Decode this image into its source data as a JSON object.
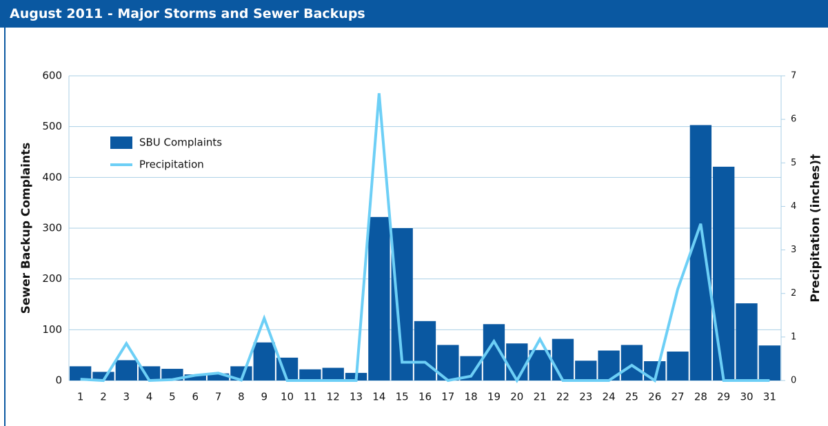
{
  "header": {
    "title": "August 2011 - Major Storms and Sewer Backups"
  },
  "chart_data": {
    "type": "bar-line",
    "categories": [
      "1",
      "2",
      "3",
      "4",
      "5",
      "6",
      "7",
      "8",
      "9",
      "10",
      "11",
      "12",
      "13",
      "14",
      "15",
      "16",
      "17",
      "18",
      "19",
      "20",
      "21",
      "22",
      "23",
      "24",
      "25",
      "26",
      "27",
      "28",
      "29",
      "30",
      "31"
    ],
    "series": [
      {
        "name": "SBU Complaints",
        "type": "bar",
        "color": "#0a58a1",
        "values": [
          28,
          17,
          40,
          28,
          23,
          12,
          14,
          28,
          75,
          45,
          22,
          25,
          15,
          322,
          300,
          117,
          70,
          48,
          111,
          73,
          60,
          82,
          39,
          59,
          70,
          38,
          57,
          503,
          421,
          152,
          69
        ]
      },
      {
        "name": "Precipitation",
        "type": "line",
        "axis": "y2",
        "color": "#6dcff6",
        "values": [
          0.03,
          0,
          0.85,
          0,
          0.02,
          0.12,
          0.17,
          0.01,
          1.43,
          0,
          0,
          0,
          0,
          6.6,
          0.42,
          0.42,
          0,
          0.1,
          0.9,
          0,
          0.95,
          0,
          0,
          0,
          0.35,
          0,
          2.1,
          3.6,
          0,
          0,
          0
        ]
      }
    ],
    "ylabel": "Sewer Backup Complaints",
    "y2label": "Precipitation (inches)†",
    "ylim": [
      0,
      600
    ],
    "yticks": [
      0,
      100,
      200,
      300,
      400,
      500,
      600
    ],
    "y2lim": [
      0,
      7
    ],
    "y2ticks": [
      0,
      1,
      2,
      3,
      4,
      5,
      6,
      7
    ],
    "grid": true,
    "legend": "upper left"
  }
}
